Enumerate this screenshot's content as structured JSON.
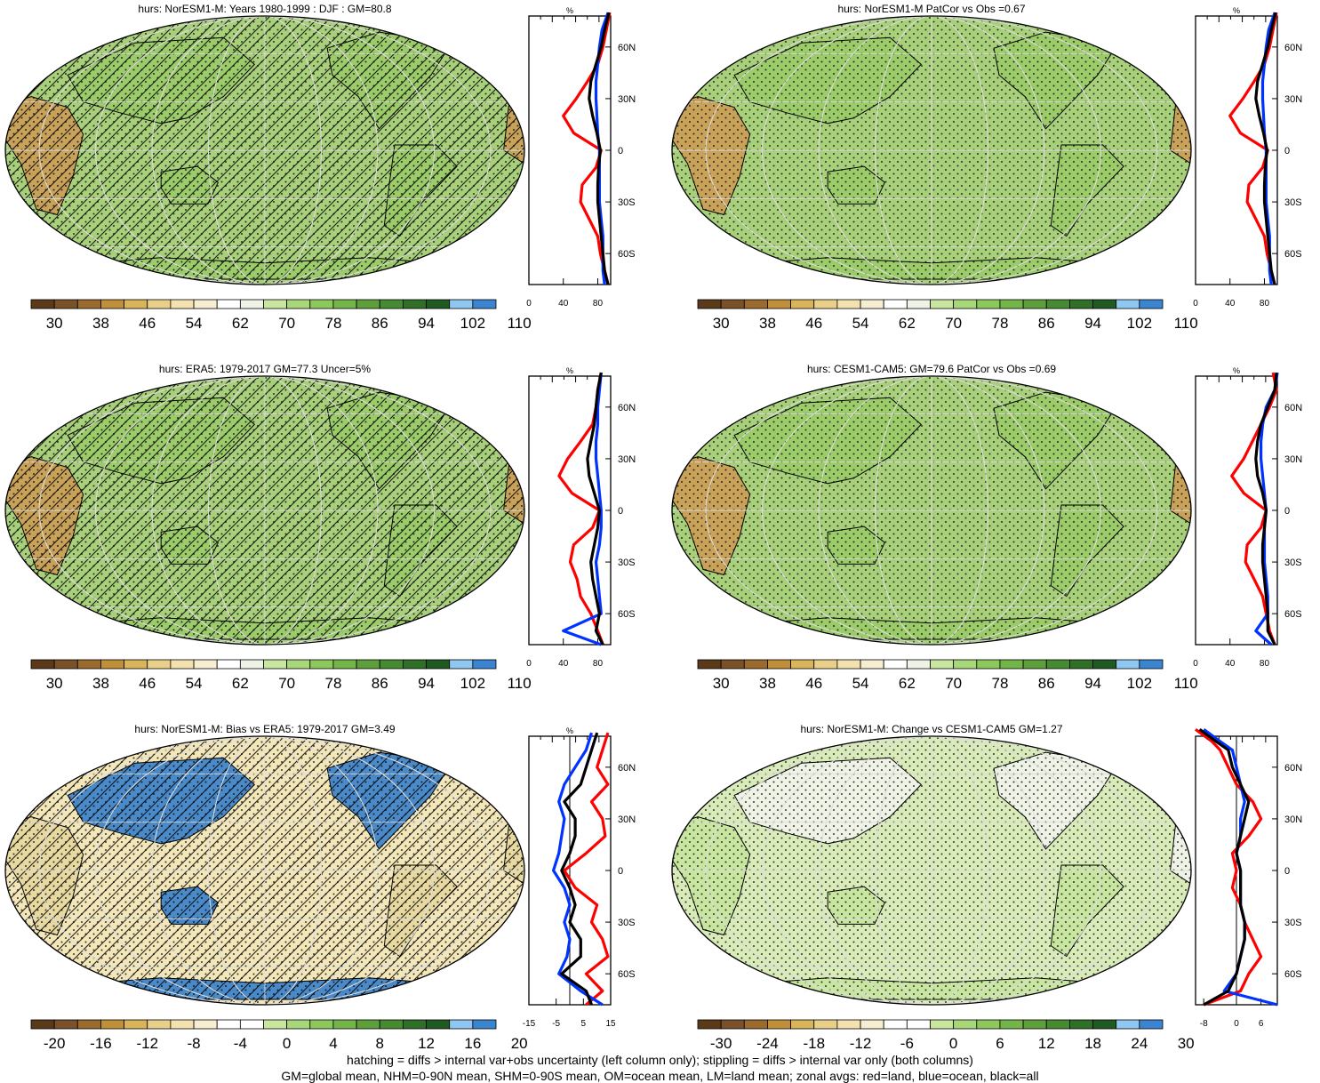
{
  "palette": {
    "abs": [
      "#5b3a1a",
      "#7a5128",
      "#9a6a2e",
      "#c08f3a",
      "#d9b45a",
      "#e8d08a",
      "#f3e2b0",
      "#f7edd0",
      "#ffffff",
      "#eef3e6",
      "#c8e6a0",
      "#a8d77a",
      "#8cc85c",
      "#74b549",
      "#5e9f3c",
      "#468a32",
      "#2f6f28",
      "#1f5a22",
      "#8ec8f0",
      "#3a84d0"
    ],
    "diff": [
      "#5b3a1a",
      "#7a5128",
      "#9a6a2e",
      "#c08f3a",
      "#d9b45a",
      "#e8d08a",
      "#f3e2b0",
      "#f7edd0",
      "#ffffff",
      "#ffffff",
      "#c8e6a0",
      "#a8d77a",
      "#8cc85c",
      "#74b549",
      "#5e9f3c",
      "#468a32",
      "#2f6f28",
      "#1f5a22",
      "#8ec8f0",
      "#3a84d0"
    ],
    "ocean": "#a8d07a",
    "land": "#9ccb6a",
    "land_dry": "#c9a25a",
    "line_land": "#ff0000",
    "line_ocean": "#0033ff",
    "line_all": "#000000"
  },
  "panels": [
    {
      "id": "p1",
      "title": "hurs: NorESM1-M: Years 1980-1999 : DJF : GM=80.8",
      "colorbar_labels": [
        "30",
        "38",
        "46",
        "54",
        "62",
        "70",
        "78",
        "86",
        "94",
        "102",
        "110"
      ],
      "colorbar_palette": "abs",
      "hatching": true,
      "ocean_color": "#a8d07a",
      "zonal": {
        "xlabel": "%",
        "xticks": [
          "0",
          "40",
          "80"
        ],
        "xtick_values": [
          0,
          40,
          80
        ],
        "xlim": [
          0,
          95
        ],
        "lat_labels": [
          "60N",
          "30N",
          "0",
          "30S",
          "60S"
        ],
        "lat_values": [
          60,
          30,
          0,
          -30,
          -60
        ],
        "side": "right",
        "zero_line": false,
        "lat": [
          80,
          70,
          60,
          50,
          40,
          30,
          20,
          10,
          0,
          -10,
          -20,
          -30,
          -40,
          -50,
          -60,
          -70,
          -78
        ],
        "land": [
          94,
          90,
          86,
          80,
          68,
          55,
          40,
          52,
          84,
          78,
          62,
          60,
          70,
          80,
          83,
          88,
          92
        ],
        "ocean": [
          92,
          85,
          82,
          80,
          78,
          78,
          79,
          80,
          82,
          82,
          82,
          82,
          84,
          86,
          86,
          86,
          88
        ],
        "all": [
          93,
          88,
          84,
          78,
          72,
          70,
          74,
          79,
          83,
          81,
          80,
          80,
          82,
          84,
          86,
          88,
          92
        ]
      }
    },
    {
      "id": "p2",
      "title": "hurs: NorESM1-M PatCor vs Obs =0.67",
      "colorbar_labels": [
        "30",
        "38",
        "46",
        "54",
        "62",
        "70",
        "78",
        "86",
        "94",
        "102",
        "110"
      ],
      "colorbar_palette": "abs",
      "hatching": false,
      "ocean_color": "#a8d07a",
      "zonal": {
        "xlabel": "%",
        "xticks": [
          "0",
          "40",
          "80"
        ],
        "xtick_values": [
          0,
          40,
          80
        ],
        "xlim": [
          0,
          95
        ],
        "lat_labels": [
          "60N",
          "30N",
          "0",
          "30S",
          "60S"
        ],
        "lat_values": [
          60,
          30,
          0,
          -30,
          -60
        ],
        "side": "right",
        "zero_line": false,
        "lat": [
          80,
          70,
          60,
          50,
          40,
          30,
          20,
          10,
          0,
          -10,
          -20,
          -30,
          -40,
          -50,
          -60,
          -70,
          -78
        ],
        "land": [
          94,
          90,
          86,
          80,
          68,
          55,
          40,
          52,
          84,
          78,
          62,
          60,
          70,
          80,
          83,
          88,
          92
        ],
        "ocean": [
          92,
          85,
          82,
          80,
          78,
          78,
          79,
          80,
          82,
          82,
          82,
          82,
          84,
          86,
          86,
          86,
          88
        ],
        "all": [
          93,
          88,
          84,
          78,
          72,
          70,
          74,
          79,
          83,
          81,
          80,
          80,
          82,
          84,
          86,
          88,
          92
        ]
      }
    },
    {
      "id": "p3",
      "title": "hurs: ERA5: 1979-2017 GM=77.3 Uncer=5%",
      "colorbar_labels": [
        "30",
        "38",
        "46",
        "54",
        "62",
        "70",
        "78",
        "86",
        "94",
        "102",
        "110"
      ],
      "colorbar_palette": "abs",
      "hatching": true,
      "ocean_color": "#a8d07a",
      "zonal": {
        "xlabel": "%",
        "xticks": [
          "0",
          "40",
          "80"
        ],
        "xtick_values": [
          0,
          40,
          80
        ],
        "xlim": [
          0,
          95
        ],
        "lat_labels": [
          "60N",
          "30N",
          "0",
          "30S",
          "60S"
        ],
        "lat_values": [
          60,
          30,
          0,
          -30,
          -60
        ],
        "side": "right",
        "zero_line": false,
        "lat": [
          80,
          70,
          60,
          50,
          40,
          30,
          20,
          10,
          0,
          -10,
          -20,
          -30,
          -40,
          -50,
          -60,
          -70,
          -78
        ],
        "land": [
          84,
          80,
          78,
          74,
          60,
          45,
          35,
          50,
          82,
          74,
          52,
          48,
          56,
          60,
          72,
          80,
          86
        ],
        "ocean": [
          84,
          82,
          80,
          80,
          78,
          78,
          80,
          82,
          84,
          84,
          82,
          78,
          80,
          82,
          84,
          40,
          84
        ],
        "all": [
          84,
          80,
          78,
          76,
          72,
          68,
          70,
          76,
          82,
          80,
          76,
          72,
          74,
          78,
          82,
          78,
          86
        ]
      }
    },
    {
      "id": "p4",
      "title": "hurs: CESM1-CAM5: GM=79.6 PatCor vs Obs =0.69",
      "colorbar_labels": [
        "30",
        "38",
        "46",
        "54",
        "62",
        "70",
        "78",
        "86",
        "94",
        "102",
        "110"
      ],
      "colorbar_palette": "abs",
      "hatching": false,
      "ocean_color": "#a8d07a",
      "zonal": {
        "xlabel": "%",
        "xticks": [
          "0",
          "40",
          "80"
        ],
        "xtick_values": [
          0,
          40,
          80
        ],
        "xlim": [
          0,
          95
        ],
        "lat_labels": [
          "60N",
          "30N",
          "0",
          "30S",
          "60S"
        ],
        "lat_values": [
          60,
          30,
          0,
          -30,
          -60
        ],
        "side": "right",
        "zero_line": false,
        "lat": [
          80,
          70,
          60,
          50,
          40,
          30,
          20,
          10,
          0,
          -10,
          -20,
          -30,
          -40,
          -50,
          -60,
          -70,
          -78
        ],
        "land": [
          90,
          94,
          86,
          76,
          66,
          56,
          42,
          56,
          82,
          76,
          60,
          58,
          68,
          78,
          82,
          86,
          92
        ],
        "ocean": [
          95,
          92,
          82,
          78,
          76,
          76,
          78,
          80,
          82,
          80,
          80,
          80,
          82,
          84,
          84,
          70,
          88
        ],
        "all": [
          94,
          92,
          84,
          76,
          72,
          70,
          72,
          78,
          82,
          80,
          78,
          78,
          80,
          82,
          84,
          84,
          92
        ]
      }
    },
    {
      "id": "p5",
      "title": "hurs: NorESM1-M: Bias vs ERA5: 1979-2017 GM=3.49",
      "colorbar_labels": [
        "-20",
        "-16",
        "-12",
        "-8",
        "-4",
        "0",
        "4",
        "8",
        "12",
        "16",
        "20"
      ],
      "colorbar_palette": "diff",
      "hatching": true,
      "ocean_color": "#f3e6b8",
      "zonal": {
        "xlabel": "%",
        "xticks": [
          "-15",
          "-5",
          "5",
          "15"
        ],
        "xtick_values": [
          -15,
          -5,
          5,
          15
        ],
        "xlim": [
          -15,
          15
        ],
        "lat_labels": [
          "60N",
          "30N",
          "0",
          "30S",
          "60S"
        ],
        "lat_values": [
          60,
          30,
          0,
          -30,
          -60
        ],
        "side": "right",
        "zero_line": true,
        "lat": [
          80,
          70,
          60,
          50,
          40,
          30,
          20,
          10,
          0,
          -10,
          -20,
          -30,
          -40,
          -50,
          -60,
          -70,
          -78
        ],
        "land": [
          14,
          12,
          10,
          14,
          8,
          12,
          13,
          6,
          -2,
          2,
          10,
          8,
          12,
          14,
          6,
          12,
          6
        ],
        "ocean": [
          8,
          6,
          2,
          -2,
          -4,
          -2,
          -3,
          -4,
          -6,
          -2,
          0,
          -2,
          0,
          -1,
          -4,
          4,
          12
        ],
        "all": [
          10,
          8,
          6,
          4,
          -2,
          2,
          2,
          0,
          -3,
          0,
          2,
          0,
          4,
          4,
          -3,
          6,
          8
        ]
      }
    },
    {
      "id": "p6",
      "title": "hurs: NorESM1-M: Change vs CESM1-CAM5 GM=1.27",
      "colorbar_labels": [
        "-30",
        "-24",
        "-18",
        "-12",
        "-6",
        "0",
        "6",
        "12",
        "18",
        "24",
        "30"
      ],
      "colorbar_palette": "diff",
      "hatching": false,
      "ocean_color": "#d8ebb8",
      "zonal": {
        "xlabel": "",
        "xticks": [
          "-8",
          "0",
          "6"
        ],
        "xtick_values": [
          -8,
          0,
          6
        ],
        "xlim": [
          -10,
          10
        ],
        "lat_labels": [
          "60N",
          "30N",
          "0",
          "30S",
          "60S"
        ],
        "lat_values": [
          60,
          30,
          0,
          -30,
          -60
        ],
        "side": "right",
        "zero_line": true,
        "lat": [
          82,
          75,
          70,
          60,
          50,
          40,
          30,
          20,
          10,
          0,
          -10,
          -20,
          -30,
          -40,
          -50,
          -60,
          -70,
          -78
        ],
        "land": [
          -10,
          -6,
          -4,
          -2,
          0,
          4,
          6,
          3,
          -1,
          0,
          -1,
          1,
          2,
          4,
          6,
          3,
          1,
          -8
        ],
        "ocean": [
          -8,
          -4,
          -1,
          0,
          1,
          2,
          1,
          1,
          0,
          1,
          1,
          1,
          2,
          2,
          1,
          0,
          -3,
          10
        ],
        "all": [
          -9,
          -5,
          -2,
          -1,
          1,
          3,
          2,
          1,
          0,
          1,
          1,
          1,
          2,
          2,
          1,
          0,
          -2,
          -8
        ]
      }
    }
  ],
  "footer": {
    "line1": "hatching = diffs > internal var+obs uncertainty (left column only); stippling = diffs > internal var only (both columns)",
    "line2": "GM=global mean, NHM=0-90N mean, SHM=0-90S mean, OM=ocean mean, LM=land mean; zonal avgs: red=land, blue=ocean, black=all"
  }
}
